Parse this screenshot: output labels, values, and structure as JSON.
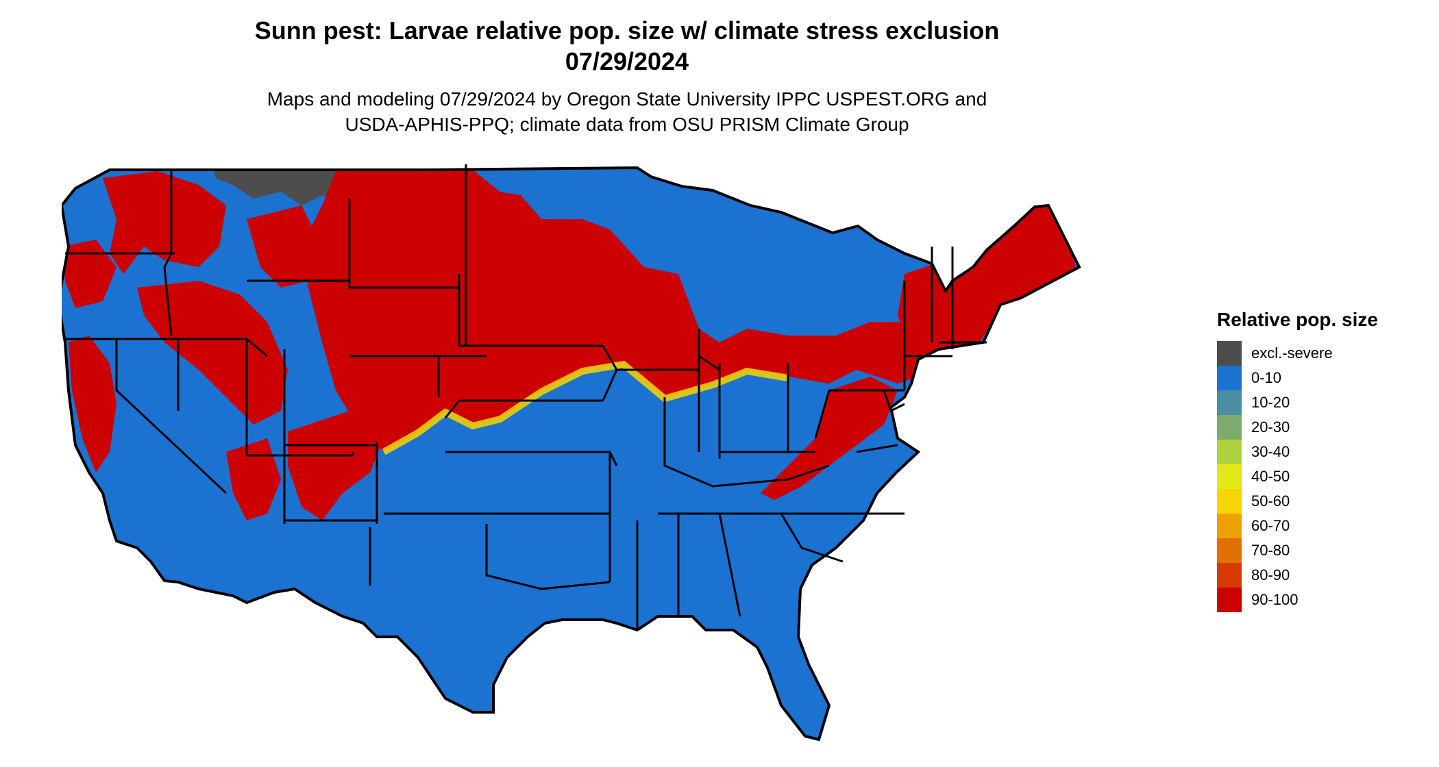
{
  "header": {
    "title_line1": "Sunn pest: Larvae relative pop. size w/ climate stress exclusion",
    "title_line2": "07/29/2024",
    "subtitle_line1": "Maps and modeling 07/29/2024 by Oregon State University IPPC USPEST.ORG and",
    "subtitle_line2": "USDA-APHIS-PPQ; climate data from OSU PRISM Climate Group"
  },
  "map": {
    "region": "Contiguous United States",
    "colors": {
      "background_region": "#1b72d0",
      "hotspot": "#cc0000",
      "excluded": "#4d4d4d",
      "border": "#000000"
    }
  },
  "legend": {
    "title": "Relative pop. size",
    "items": [
      {
        "label": "excl.-severe",
        "color": "#4d4d4d"
      },
      {
        "label": "0-10",
        "color": "#1b72d0"
      },
      {
        "label": "10-20",
        "color": "#4b8ea3"
      },
      {
        "label": "20-30",
        "color": "#7dab6d"
      },
      {
        "label": "30-40",
        "color": "#aed23f"
      },
      {
        "label": "40-50",
        "color": "#e1ea14"
      },
      {
        "label": "50-60",
        "color": "#f7d600"
      },
      {
        "label": "60-70",
        "color": "#eca200"
      },
      {
        "label": "70-80",
        "color": "#e07000"
      },
      {
        "label": "80-90",
        "color": "#d63a00"
      },
      {
        "label": "90-100",
        "color": "#cc0000"
      }
    ]
  }
}
